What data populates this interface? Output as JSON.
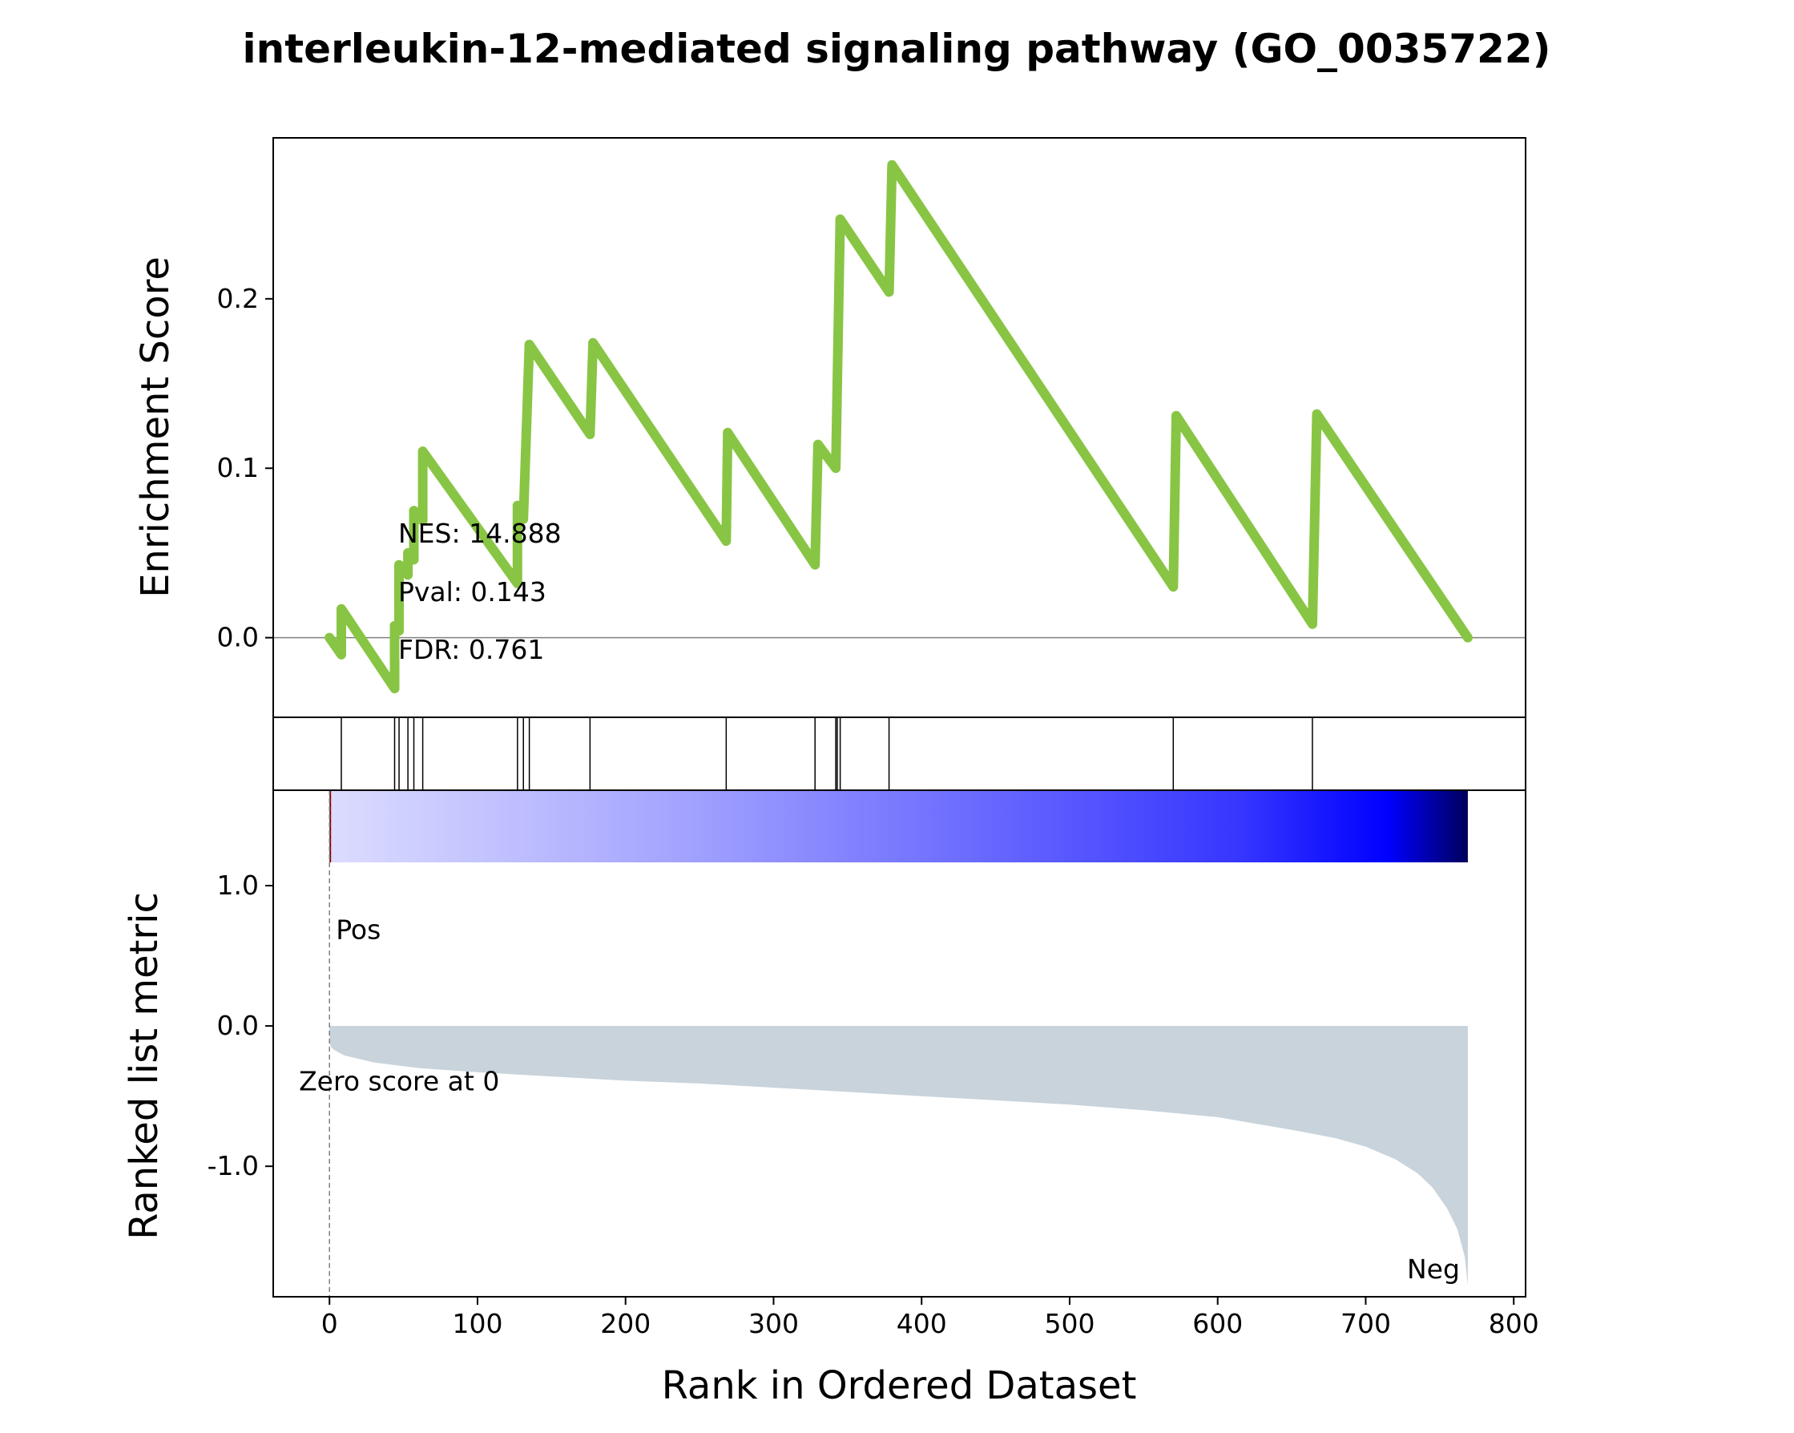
{
  "chart_data": {
    "type": "line",
    "title": "interleukin-12-mediated signaling pathway (GO_0035722)",
    "xlabel": "Rank in Ordered Dataset",
    "xlim": [
      -38,
      808
    ],
    "xticks": [
      0,
      100,
      200,
      300,
      400,
      500,
      600,
      700,
      800
    ],
    "enrichment": {
      "ylabel": "Enrichment Score",
      "ylim": [
        -0.047,
        0.295
      ],
      "yticks": [
        0.0,
        0.1,
        0.2
      ],
      "ytick_labels": [
        "0.0",
        "0.1",
        "0.2"
      ],
      "line_color": "#88c544",
      "x": [
        0,
        8,
        8,
        44,
        44,
        47,
        47,
        53,
        53,
        57,
        57,
        63,
        63,
        127,
        127,
        131,
        131,
        135,
        135,
        176,
        176,
        178,
        178,
        268,
        268,
        269,
        269,
        328,
        328,
        330,
        330,
        342,
        342,
        345,
        345,
        378,
        378,
        380,
        380,
        570,
        570,
        572,
        572,
        664,
        664,
        667,
        667,
        769
      ],
      "y": [
        0.0,
        -0.01,
        0.017,
        -0.03,
        0.007,
        0.004,
        0.043,
        0.037,
        0.05,
        0.046,
        0.075,
        0.069,
        0.11,
        0.032,
        0.078,
        0.074,
        0.07,
        0.173,
        0.173,
        0.12,
        0.12,
        0.174,
        0.174,
        0.057,
        0.057,
        0.121,
        0.121,
        0.043,
        0.043,
        0.114,
        0.114,
        0.1,
        0.1,
        0.247,
        0.247,
        0.204,
        0.204,
        0.279,
        0.279,
        0.03,
        0.03,
        0.131,
        0.131,
        0.008,
        0.008,
        0.132,
        0.132,
        0.0
      ],
      "stats": [
        "NES: 14.888",
        "Pval: 0.143",
        "FDR: 0.761"
      ]
    },
    "hits": [
      8,
      44,
      47,
      53,
      57,
      63,
      127,
      131,
      135,
      176,
      268,
      328,
      342,
      343,
      345,
      378,
      570,
      664
    ],
    "ranked_metric": {
      "ylabel": "Ranked list metric",
      "ylim": [
        -1.93,
        1.68
      ],
      "yticks": [
        1.0,
        0.0,
        -1.0
      ],
      "ytick_labels": [
        "1.0",
        "0.0",
        "-1.0"
      ],
      "fill_color": "#c8d3db",
      "x": [
        0,
        1,
        3,
        10,
        30,
        60,
        100,
        150,
        200,
        250,
        300,
        350,
        400,
        450,
        500,
        550,
        600,
        650,
        680,
        700,
        720,
        735,
        745,
        755,
        762,
        767,
        769
      ],
      "y": [
        -0.12,
        -0.15,
        -0.17,
        -0.21,
        -0.26,
        -0.3,
        -0.33,
        -0.36,
        -0.39,
        -0.41,
        -0.44,
        -0.47,
        -0.5,
        -0.53,
        -0.56,
        -0.6,
        -0.65,
        -0.74,
        -0.8,
        -0.86,
        -0.95,
        -1.05,
        -1.15,
        -1.3,
        -1.45,
        -1.65,
        -1.85
      ],
      "pos_label": "Pos",
      "neg_label": "Neg",
      "zero_label": "Zero score at 0",
      "pos_color": "#ff0000",
      "neg_color": "#0000ff"
    }
  }
}
